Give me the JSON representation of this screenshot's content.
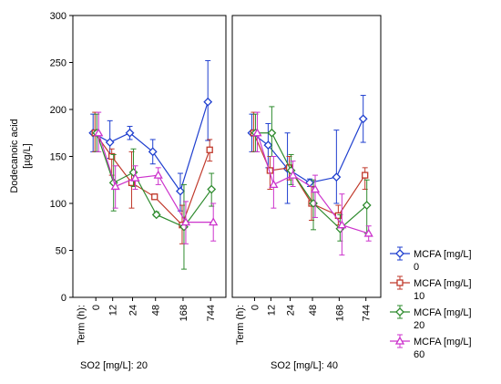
{
  "chart_data": {
    "type": "line",
    "ylabel_line1": "Dodecanoic acid",
    "ylabel_line2": "[µg/L]",
    "xlabel_prefix": "Term (h):",
    "categories": [
      "0",
      "12",
      "24",
      "48",
      "168",
      "744"
    ],
    "ylim": [
      0,
      300
    ],
    "yticks": [
      "0",
      "50",
      "100",
      "150",
      "200",
      "250",
      "300"
    ],
    "grid": false,
    "legend_position": "bottom-right",
    "panels": [
      {
        "label": "SO2 [mg/L]: 20",
        "series": [
          {
            "legend_title": "MCFA [mg/L]",
            "name": "0",
            "color": "#1f3fcf",
            "marker": "diamond",
            "values": [
              175,
              165,
              175,
              155,
              113,
              208
            ],
            "err": [
              [
                155,
                195
              ],
              [
                148,
                188
              ],
              [
                168,
                182
              ],
              [
                142,
                168
              ],
              [
                92,
                132
              ],
              [
                167,
                252
              ]
            ]
          },
          {
            "legend_title": "MCFA [mg/L]",
            "name": "10",
            "color": "#c0392b",
            "marker": "square",
            "values": [
              175,
              150,
              122,
              107,
              77,
              157
            ],
            "err": [
              [
                155,
                197
              ],
              [
                130,
                158
              ],
              [
                95,
                155
              ],
              [
                105,
                110
              ],
              [
                57,
                98
              ],
              [
                145,
                168
              ]
            ]
          },
          {
            "legend_title": "MCFA [mg/L]",
            "name": "20",
            "color": "#2e8b2e",
            "marker": "diamond",
            "values": [
              175,
              122,
              133,
              88,
              75,
              115
            ],
            "err": [
              [
                155,
                195
              ],
              [
                92,
                152
              ],
              [
                118,
                158
              ],
              [
                86,
                91
              ],
              [
                30,
                120
              ],
              [
                97,
                132
              ]
            ]
          },
          {
            "legend_title": "MCFA [mg/L]",
            "name": "60",
            "color": "#cc33cc",
            "marker": "triangle",
            "values": [
              175,
              118,
              127,
              130,
              80,
              80
            ],
            "err": [
              [
                155,
                197
              ],
              [
                95,
                140
              ],
              [
                115,
                140
              ],
              [
                120,
                138
              ],
              [
                57,
                102
              ],
              [
                60,
                100
              ]
            ]
          }
        ]
      },
      {
        "label": "SO2 [mg/L]: 40",
        "series": [
          {
            "legend_title": "MCFA [mg/L]",
            "name": "0",
            "color": "#1f3fcf",
            "marker": "diamond",
            "values": [
              175,
              162,
              137,
              122,
              128,
              190
            ],
            "err": [
              [
                155,
                195
              ],
              [
                138,
                185
              ],
              [
                100,
                175
              ],
              [
                118,
                126
              ],
              [
                100,
                178
              ],
              [
                165,
                215
              ]
            ]
          },
          {
            "legend_title": "MCFA [mg/L]",
            "name": "10",
            "color": "#c0392b",
            "marker": "square",
            "values": [
              175,
              135,
              138,
              100,
              87,
              130
            ],
            "err": [
              [
                155,
                197
              ],
              [
                115,
                150
              ],
              [
                125,
                150
              ],
              [
                82,
                118
              ],
              [
                77,
                98
              ],
              [
                115,
                138
              ]
            ]
          },
          {
            "legend_title": "MCFA [mg/L]",
            "name": "20",
            "color": "#2e8b2e",
            "marker": "diamond",
            "values": [
              175,
              175,
              135,
              100,
              73,
              98
            ],
            "err": [
              [
                155,
                195
              ],
              [
                150,
                203
              ],
              [
                120,
                152
              ],
              [
                72,
                125
              ],
              [
                60,
                88
              ],
              [
                68,
                125
              ]
            ]
          },
          {
            "legend_title": "MCFA [mg/L]",
            "name": "60",
            "color": "#cc33cc",
            "marker": "triangle",
            "values": [
              175,
              120,
              130,
              115,
              77,
              68
            ],
            "err": [
              [
                155,
                197
              ],
              [
                95,
                150
              ],
              [
                118,
                145
              ],
              [
                85,
                130
              ],
              [
                45,
                110
              ],
              [
                60,
                76
              ]
            ]
          }
        ]
      }
    ]
  }
}
